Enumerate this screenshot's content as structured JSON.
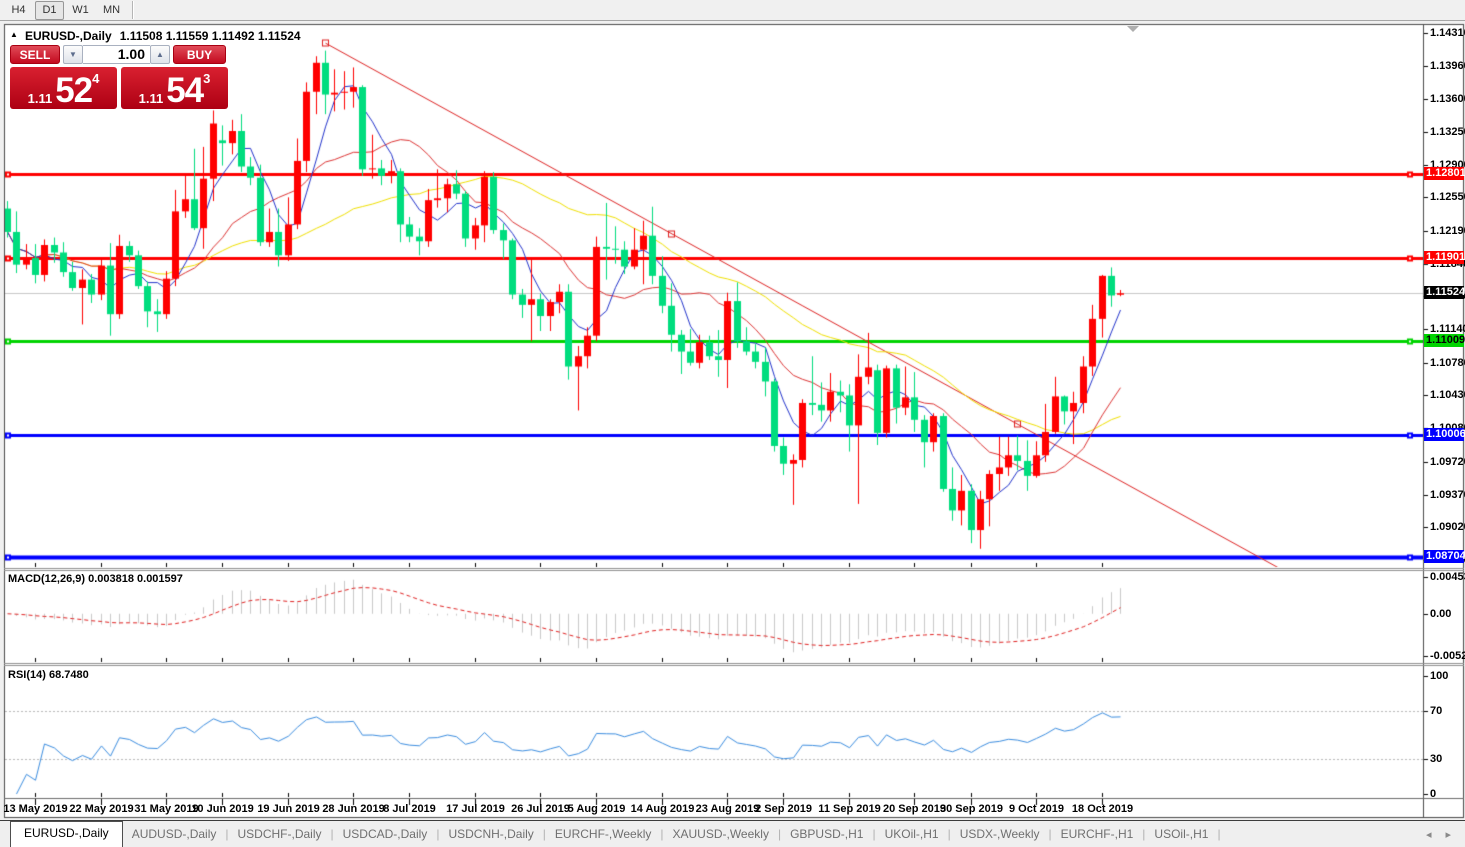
{
  "toolbar": {
    "timeframes": [
      {
        "label": "H4",
        "active": false
      },
      {
        "label": "D1",
        "active": true
      },
      {
        "label": "W1",
        "active": false
      },
      {
        "label": "MN",
        "active": false
      }
    ]
  },
  "chart_header": {
    "collapse_icon": "▲",
    "symbol": "EURUSD-,Daily",
    "ohlc": "1.11508 1.11559 1.11492 1.11524"
  },
  "one_click": {
    "sell_label": "SELL",
    "buy_label": "BUY",
    "volume": "1.00",
    "spin_down": "▼",
    "spin_up": "▲",
    "sell_price_small": "1.11",
    "sell_price_big": "52",
    "sell_price_sup": "4",
    "buy_price_small": "1.11",
    "buy_price_big": "54",
    "buy_price_sup": "3"
  },
  "chart_data": {
    "type": "candlestick",
    "symbol": "EURUSD-,Daily",
    "last_bar": {
      "open": 1.11508,
      "high": 1.11559,
      "low": 1.11492,
      "close": 1.11524
    },
    "candles": [
      [
        1.1243,
        1.1251,
        1.1212,
        1.1218
      ],
      [
        1.1218,
        1.124,
        1.1174,
        1.1183
      ],
      [
        1.1183,
        1.1205,
        1.1178,
        1.119
      ],
      [
        1.119,
        1.1205,
        1.1163,
        1.1172
      ],
      [
        1.1172,
        1.121,
        1.1165,
        1.1204
      ],
      [
        1.1204,
        1.1212,
        1.1185,
        1.1196
      ],
      [
        1.1196,
        1.1207,
        1.117,
        1.1175
      ],
      [
        1.1175,
        1.1186,
        1.1155,
        1.1158
      ],
      [
        1.1158,
        1.1178,
        1.1119,
        1.1167
      ],
      [
        1.1167,
        1.1173,
        1.1142,
        1.1151
      ],
      [
        1.1151,
        1.1188,
        1.1145,
        1.1182
      ],
      [
        1.1182,
        1.1206,
        1.1107,
        1.113
      ],
      [
        1.113,
        1.1215,
        1.1125,
        1.1203
      ],
      [
        1.1203,
        1.1208,
        1.1186,
        1.1193
      ],
      [
        1.1193,
        1.1198,
        1.1157,
        1.116
      ],
      [
        1.116,
        1.1165,
        1.1116,
        1.1133
      ],
      [
        1.1133,
        1.1146,
        1.1111,
        1.113
      ],
      [
        1.113,
        1.1176,
        1.1125,
        1.1168
      ],
      [
        1.1168,
        1.1263,
        1.116,
        1.124
      ],
      [
        1.124,
        1.128,
        1.1233,
        1.1253
      ],
      [
        1.1253,
        1.1307,
        1.122,
        1.1222
      ],
      [
        1.1222,
        1.1309,
        1.12,
        1.1275
      ],
      [
        1.1275,
        1.1348,
        1.1251,
        1.1334
      ],
      [
        1.1316,
        1.1332,
        1.1289,
        1.1313
      ],
      [
        1.1313,
        1.1338,
        1.1301,
        1.1326
      ],
      [
        1.1326,
        1.1344,
        1.1282,
        1.1288
      ],
      [
        1.1288,
        1.1298,
        1.1268,
        1.1276
      ],
      [
        1.1276,
        1.129,
        1.1203,
        1.1207
      ],
      [
        1.1207,
        1.1243,
        1.1202,
        1.1218
      ],
      [
        1.1218,
        1.1243,
        1.1181,
        1.1193
      ],
      [
        1.1193,
        1.1255,
        1.1187,
        1.1226
      ],
      [
        1.1226,
        1.1318,
        1.1221,
        1.1294
      ],
      [
        1.1294,
        1.1378,
        1.1282,
        1.1368
      ],
      [
        1.1368,
        1.1406,
        1.1344,
        1.1399
      ],
      [
        1.1399,
        1.1412,
        1.1344,
        1.1365
      ],
      [
        1.1365,
        1.1392,
        1.1347,
        1.1367
      ],
      [
        1.1367,
        1.139,
        1.1349,
        1.1368
      ],
      [
        1.1368,
        1.1394,
        1.1351,
        1.1373
      ],
      [
        1.1373,
        1.1375,
        1.1278,
        1.1285
      ],
      [
        1.1285,
        1.1322,
        1.1275,
        1.1286
      ],
      [
        1.1286,
        1.1295,
        1.1268,
        1.1278
      ],
      [
        1.1278,
        1.1295,
        1.127,
        1.1283
      ],
      [
        1.1283,
        1.1286,
        1.1207,
        1.1226
      ],
      [
        1.1226,
        1.1234,
        1.1207,
        1.1213
      ],
      [
        1.1213,
        1.1222,
        1.1193,
        1.1208
      ],
      [
        1.1208,
        1.1264,
        1.1202,
        1.1252
      ],
      [
        1.1252,
        1.1285,
        1.1244,
        1.1254
      ],
      [
        1.1254,
        1.1275,
        1.1239,
        1.1269
      ],
      [
        1.1269,
        1.1284,
        1.1253,
        1.1259
      ],
      [
        1.1259,
        1.1262,
        1.1202,
        1.1211
      ],
      [
        1.1211,
        1.1233,
        1.1199,
        1.1225
      ],
      [
        1.1225,
        1.1283,
        1.1207,
        1.1277
      ],
      [
        1.1277,
        1.1282,
        1.1216,
        1.122
      ],
      [
        1.122,
        1.1227,
        1.1189,
        1.1209
      ],
      [
        1.1209,
        1.1211,
        1.1146,
        1.1151
      ],
      [
        1.1151,
        1.1157,
        1.1126,
        1.114
      ],
      [
        1.114,
        1.1188,
        1.1101,
        1.1146
      ],
      [
        1.1146,
        1.1152,
        1.1112,
        1.1128
      ],
      [
        1.1128,
        1.1146,
        1.1112,
        1.1143
      ],
      [
        1.1143,
        1.1162,
        1.1131,
        1.1154
      ],
      [
        1.1154,
        1.1162,
        1.106,
        1.1074
      ],
      [
        1.1074,
        1.1096,
        1.1027,
        1.1085
      ],
      [
        1.1085,
        1.1116,
        1.1072,
        1.1107
      ],
      [
        1.1107,
        1.1213,
        1.1101,
        1.1202
      ],
      [
        1.1202,
        1.1249,
        1.1167,
        1.12
      ],
      [
        1.12,
        1.1224,
        1.1184,
        1.1199
      ],
      [
        1.1199,
        1.1208,
        1.1173,
        1.1181
      ],
      [
        1.1181,
        1.1222,
        1.1178,
        1.1199
      ],
      [
        1.1199,
        1.123,
        1.1162,
        1.1214
      ],
      [
        1.1214,
        1.1245,
        1.1162,
        1.1171
      ],
      [
        1.1171,
        1.1192,
        1.1131,
        1.1139
      ],
      [
        1.1139,
        1.1163,
        1.109,
        1.1108
      ],
      [
        1.1108,
        1.1113,
        1.1066,
        1.109
      ],
      [
        1.109,
        1.1114,
        1.1075,
        1.1078
      ],
      [
        1.1078,
        1.1108,
        1.1072,
        1.11
      ],
      [
        1.11,
        1.1107,
        1.1081,
        1.1085
      ],
      [
        1.1085,
        1.1113,
        1.1063,
        1.1081
      ],
      [
        1.1081,
        1.1153,
        1.1051,
        1.1144
      ],
      [
        1.1144,
        1.1164,
        1.1094,
        1.1101
      ],
      [
        1.1101,
        1.1116,
        1.1086,
        1.109
      ],
      [
        1.109,
        1.1098,
        1.1072,
        1.1079
      ],
      [
        1.1079,
        1.1094,
        1.1042,
        1.1058
      ],
      [
        1.1058,
        1.1061,
        1.0983,
        1.0989
      ],
      [
        1.0989,
        1.0998,
        1.0958,
        1.097
      ],
      [
        1.097,
        1.098,
        1.0926,
        1.0974
      ],
      [
        1.0974,
        1.1039,
        1.0966,
        1.1035
      ],
      [
        1.1035,
        1.1085,
        1.1022,
        1.1033
      ],
      [
        1.1033,
        1.1057,
        1.1015,
        1.1027
      ],
      [
        1.1027,
        1.1067,
        1.1015,
        1.1047
      ],
      [
        1.1047,
        1.1059,
        1.1025,
        1.1043
      ],
      [
        1.1043,
        1.1055,
        1.0983,
        1.1011
      ],
      [
        1.1011,
        1.1087,
        1.0927,
        1.1063
      ],
      [
        1.1063,
        1.111,
        1.1055,
        1.1073
      ],
      [
        1.107,
        1.1076,
        1.099,
        1.1003
      ],
      [
        1.1003,
        1.1075,
        1.0998,
        1.1072
      ],
      [
        1.1072,
        1.1076,
        1.1013,
        1.103
      ],
      [
        1.103,
        1.1074,
        1.1022,
        1.1041
      ],
      [
        1.1041,
        1.1068,
        1.1004,
        1.1017
      ],
      [
        1.1017,
        1.1022,
        1.0966,
        1.0993
      ],
      [
        1.0993,
        1.1024,
        1.0983,
        1.1021
      ],
      [
        1.1021,
        1.1024,
        1.094,
        1.0943
      ],
      [
        1.0943,
        1.0966,
        1.0909,
        1.092
      ],
      [
        1.092,
        1.0958,
        1.0904,
        1.0941
      ],
      [
        1.0941,
        1.0948,
        1.0885,
        1.0899
      ],
      [
        1.0899,
        1.0941,
        1.0879,
        1.0932
      ],
      [
        1.0932,
        1.0963,
        1.0903,
        1.0959
      ],
      [
        1.0959,
        1.0999,
        1.0941,
        1.0966
      ],
      [
        1.0966,
        1.0999,
        1.0957,
        1.0979
      ],
      [
        1.0979,
        1.1,
        1.0963,
        1.0973
      ],
      [
        1.0973,
        1.0995,
        1.0941,
        1.0957
      ],
      [
        1.0957,
        1.0994,
        1.0955,
        1.0979
      ],
      [
        1.0979,
        1.1034,
        1.0972,
        1.1004
      ],
      [
        1.1004,
        1.1063,
        1.1002,
        1.1042
      ],
      [
        1.1042,
        1.1043,
        1.1012,
        1.1026
      ],
      [
        1.1026,
        1.1047,
        1.0991,
        1.1035
      ],
      [
        1.1035,
        1.1085,
        1.1024,
        1.1074
      ],
      [
        1.1074,
        1.114,
        1.1064,
        1.1125
      ],
      [
        1.1125,
        1.1172,
        1.1105,
        1.1171
      ],
      [
        1.1171,
        1.118,
        1.1138,
        1.115
      ],
      [
        1.11508,
        1.11559,
        1.11492,
        1.11524
      ]
    ],
    "date_ticks": [
      {
        "i": 3,
        "label": "13 May 2019"
      },
      {
        "i": 10,
        "label": "22 May 2019"
      },
      {
        "i": 17,
        "label": "31 May 2019"
      },
      {
        "i": 23,
        "label": "10 Jun 2019"
      },
      {
        "i": 30,
        "label": "19 Jun 2019"
      },
      {
        "i": 37,
        "label": "28 Jun 2019"
      },
      {
        "i": 43,
        "label": "8 Jul 2019"
      },
      {
        "i": 50,
        "label": "17 Jul 2019"
      },
      {
        "i": 57,
        "label": "26 Jul 2019"
      },
      {
        "i": 63,
        "label": "5 Aug 2019"
      },
      {
        "i": 70,
        "label": "14 Aug 2019"
      },
      {
        "i": 77,
        "label": "23 Aug 2019"
      },
      {
        "i": 83,
        "label": "2 Sep 2019"
      },
      {
        "i": 90,
        "label": "11 Sep 2019"
      },
      {
        "i": 97,
        "label": "20 Sep 2019"
      },
      {
        "i": 103,
        "label": "30 Sep 2019"
      },
      {
        "i": 110,
        "label": "9 Oct 2019"
      },
      {
        "i": 117,
        "label": "18 Oct 2019"
      }
    ],
    "price_ticks": [
      "1.14310",
      "1.13960",
      "1.13600",
      "1.13250",
      "1.12900",
      "1.12550",
      "1.12190",
      "1.11840",
      "1.11490",
      "1.11140",
      "1.10780",
      "1.10430",
      "1.10080",
      "1.09720",
      "1.09370",
      "1.09020",
      "1.08670"
    ],
    "levels": [
      {
        "price": 1.12801,
        "label": "1.12801",
        "color": "#ff0000",
        "width": 3,
        "badge_bg": "#ff0000",
        "badge_fg": "#ffffff"
      },
      {
        "price": 1.11901,
        "label": "1.11901",
        "color": "#ff0000",
        "width": 3,
        "badge_bg": "#ff0000",
        "badge_fg": "#ffffff"
      },
      {
        "price": 1.11009,
        "label": "1.11009",
        "color": "#00d400",
        "width": 3,
        "badge_bg": "#00d400",
        "badge_fg": "#000000"
      },
      {
        "price": 1.10006,
        "label": "1.10006",
        "color": "#0000ff",
        "width": 3,
        "badge_bg": "#0000ff",
        "badge_fg": "#ffffff"
      },
      {
        "price": 1.08704,
        "label": "1.08704",
        "color": "#0000ff",
        "width": 4,
        "badge_bg": "#0000ff",
        "badge_fg": "#ffffff"
      }
    ],
    "trendline": {
      "i1": 34,
      "p1": 1.142,
      "i2": 136,
      "p2": 1.0858,
      "handles": [
        34,
        71,
        108
      ],
      "color": "#dd2222"
    },
    "current_price": {
      "value": 1.11524,
      "label": "1.11524",
      "line_color": "#c8c8c8",
      "badge_bg": "#000000",
      "badge_fg": "#ffffff"
    },
    "ma_periods": {
      "blue": 5,
      "red": 13,
      "yellow": 34
    },
    "indicators": {
      "macd": {
        "label": "MACD(12,26,9) 0.003818 0.001597",
        "fast": 12,
        "slow": 26,
        "signal": 9,
        "ticks": [
          {
            "v": 0.004536,
            "label": "0.004536"
          },
          {
            "v": 0,
            "label": "0.00"
          },
          {
            "v": -0.005205,
            "label": "-0.005205"
          }
        ],
        "hist_color": "#c9c9c9",
        "signal_color": "#e02020"
      },
      "rsi": {
        "label": "RSI(14) 68.7480",
        "period": 14,
        "last": 68.748,
        "ticks": [
          {
            "v": 100,
            "label": "100"
          },
          {
            "v": 70,
            "label": "70"
          },
          {
            "v": 30,
            "label": "30"
          },
          {
            "v": 0,
            "label": "0"
          }
        ],
        "guide_levels": [
          70,
          30
        ],
        "line_color": "#3b8de0"
      }
    },
    "colors": {
      "bull": "#ff0000",
      "bear": "#00dd7e",
      "ma_blue": "#2233cc",
      "ma_red": "#dd3333",
      "ma_yellow": "#f0e000",
      "background": "#ffffff"
    }
  },
  "bottom_tabs": {
    "items": [
      {
        "label": "EURUSD-,Daily",
        "active": true
      },
      {
        "label": "AUDUSD-,Daily",
        "active": false
      },
      {
        "label": "USDCHF-,Daily",
        "active": false
      },
      {
        "label": "USDCAD-,Daily",
        "active": false
      },
      {
        "label": "USDCNH-,Daily",
        "active": false
      },
      {
        "label": "EURCHF-,Weekly",
        "active": false
      },
      {
        "label": "XAUUSD-,Weekly",
        "active": false
      },
      {
        "label": "GBPUSD-,H1",
        "active": false
      },
      {
        "label": "UKOil-,H1",
        "active": false
      },
      {
        "label": "USDX-,Weekly",
        "active": false
      },
      {
        "label": "EURCHF-,H1",
        "active": false
      },
      {
        "label": "USOil-,H1",
        "active": false
      }
    ],
    "left_arrow": "◂",
    "right_arrow": "▸"
  }
}
